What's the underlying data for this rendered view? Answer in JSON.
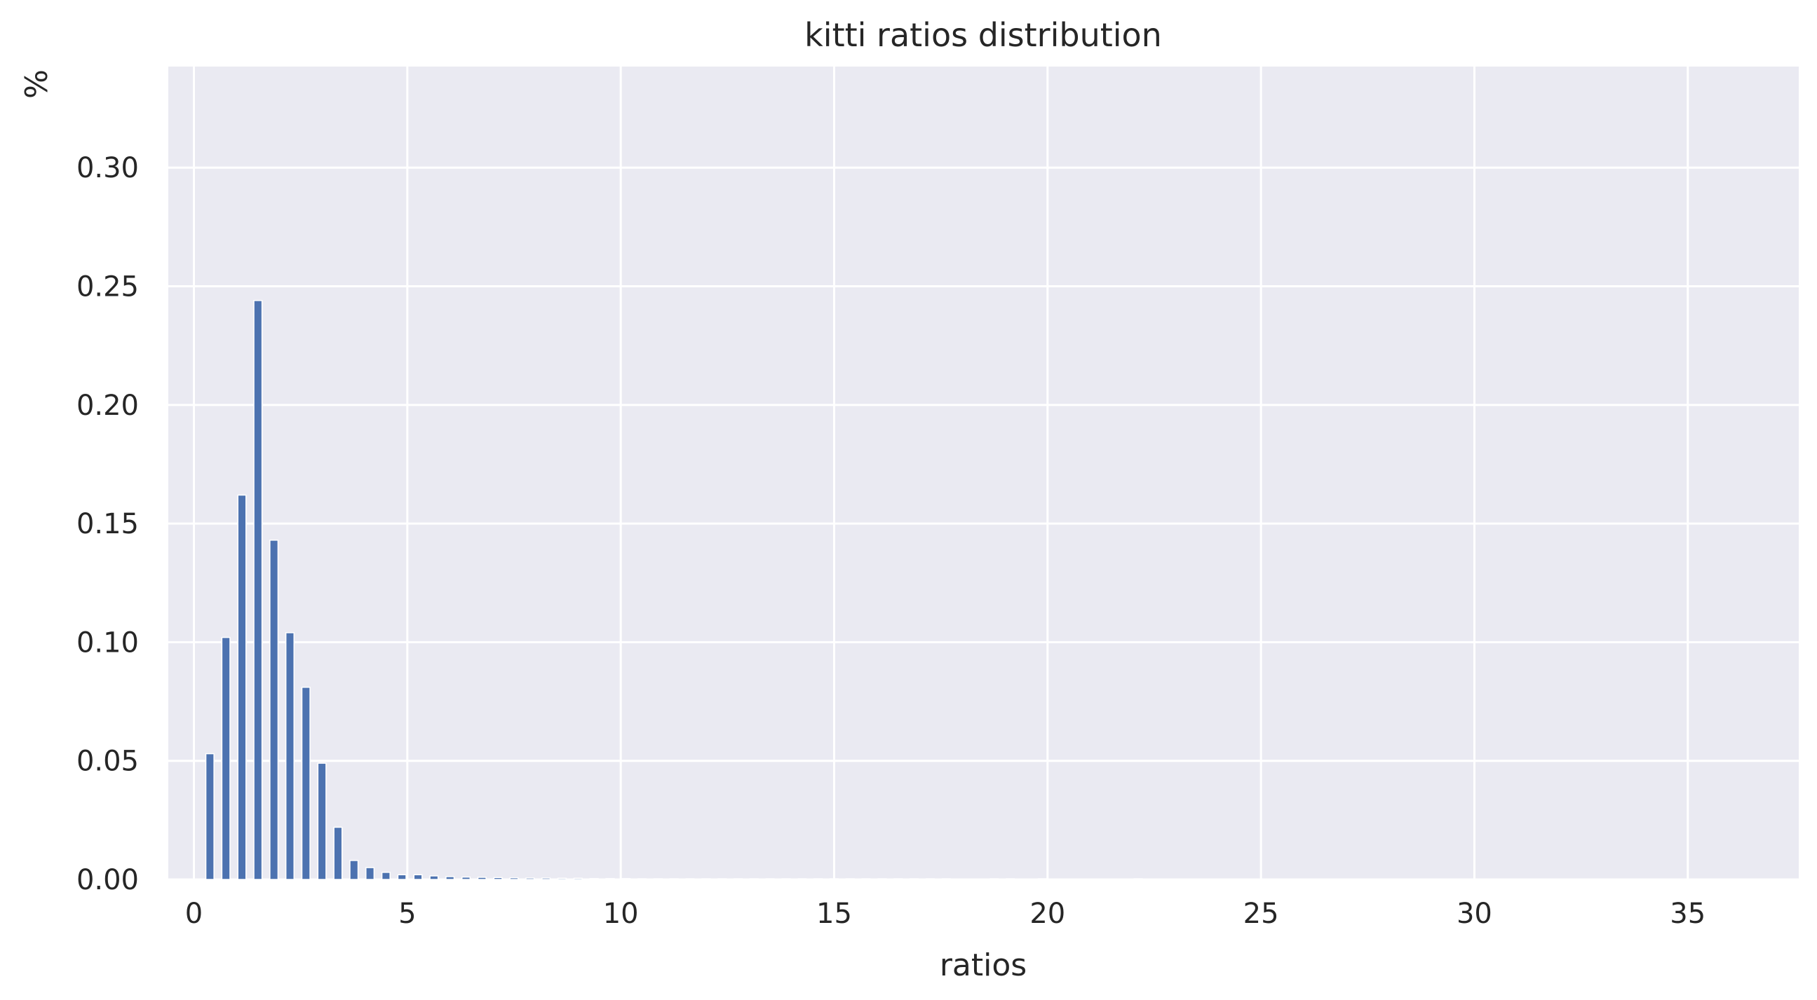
{
  "chart_data": {
    "type": "bar",
    "title": "kitti ratios distribution",
    "xlabel": "ratios",
    "ylabel": "%",
    "xlim": [
      -0.6,
      37.6
    ],
    "ylim": [
      0,
      0.3426
    ],
    "xticks": [
      0,
      5,
      10,
      15,
      20,
      25,
      30,
      35
    ],
    "yticks": [
      0.0,
      0.05,
      0.1,
      0.15,
      0.2,
      0.25,
      0.3
    ],
    "xtick_labels": [
      "0",
      "5",
      "10",
      "15",
      "20",
      "25",
      "30",
      "35"
    ],
    "ytick_labels": [
      "0.00",
      "0.05",
      "0.10",
      "0.15",
      "0.20",
      "0.25",
      "0.30"
    ],
    "grid": true,
    "bar_width": 0.19,
    "colors": {
      "bar": "#4c72b0",
      "plot_background": "#eaeaf2",
      "grid": "#ffffff",
      "text": "#262626"
    },
    "x": [
      0.375,
      0.75,
      1.125,
      1.5,
      1.875,
      2.25,
      2.625,
      3.0,
      3.375,
      3.75,
      4.125,
      4.5,
      4.875,
      5.25,
      5.625,
      6.0,
      6.375,
      6.75,
      7.125,
      7.5,
      7.875,
      8.25,
      8.625,
      9.0,
      9.375,
      9.75,
      10.125,
      10.5,
      10.875,
      11.25,
      11.625,
      12.0,
      12.375,
      12.75,
      13.125,
      13.5,
      13.875,
      14.25,
      14.625,
      15.0,
      15.375,
      15.75,
      16.125,
      16.5,
      16.875,
      17.25,
      17.625,
      18.75,
      19.125,
      19.875,
      22.125
    ],
    "values": [
      0.053,
      0.102,
      0.162,
      0.244,
      0.143,
      0.104,
      0.081,
      0.049,
      0.022,
      0.008,
      0.005,
      0.003,
      0.002,
      0.002,
      0.0015,
      0.0012,
      0.001,
      0.0009,
      0.0008,
      0.0007,
      0.0006,
      0.0006,
      0.0005,
      0.0005,
      0.0004,
      0.0004,
      0.0004,
      0.0003,
      0.0003,
      0.0003,
      0.0003,
      0.0003,
      0.0003,
      0.0003,
      0.0003,
      0.0003,
      0.0003,
      0.0003,
      0.0003,
      0.0003,
      0.0003,
      0.0003,
      0.0003,
      0.0003,
      0.0003,
      0.0003,
      0.0003,
      0.0003,
      0.0003,
      0.0003,
      0.0003
    ]
  }
}
